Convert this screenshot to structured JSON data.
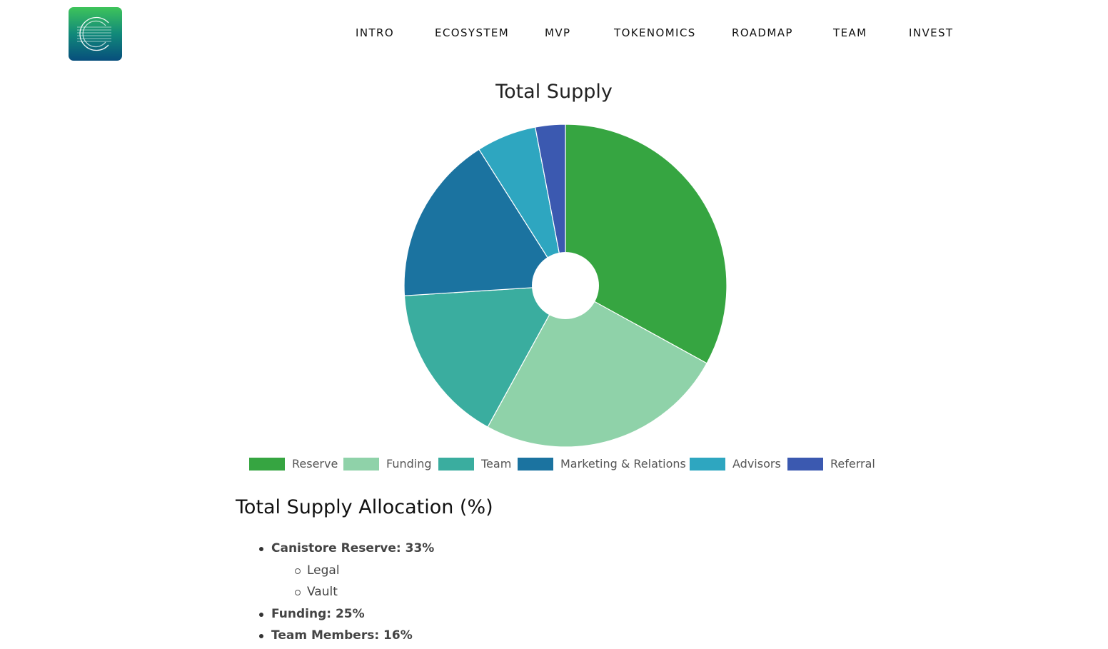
{
  "nav": {
    "items": [
      "INTRO",
      "ECOSYSTEM",
      "MVP",
      "TOKENOMICS",
      "ROADMAP",
      "TEAM",
      "INVEST"
    ]
  },
  "chart_data": {
    "type": "pie",
    "title": "Total Supply",
    "labels": [
      "Reserve",
      "Funding",
      "Team",
      "Marketing & Relations",
      "Advisors",
      "Referral"
    ],
    "values": [
      33,
      25,
      16,
      17,
      6,
      3
    ],
    "colors": [
      "#36a541",
      "#8fd2a9",
      "#3aad9f",
      "#1b73a0",
      "#2ea6c0",
      "#3b59b0"
    ],
    "donut_hole": true,
    "legend_position": "bottom"
  },
  "allocation": {
    "heading": "Total Supply Allocation (%)",
    "items": [
      {
        "text": "Canistore Reserve: 33%",
        "sub": [
          "Legal",
          "Vault"
        ]
      },
      {
        "text": "Funding: 25%",
        "sub": []
      },
      {
        "text": "Team Members: 16%",
        "sub": []
      }
    ]
  }
}
